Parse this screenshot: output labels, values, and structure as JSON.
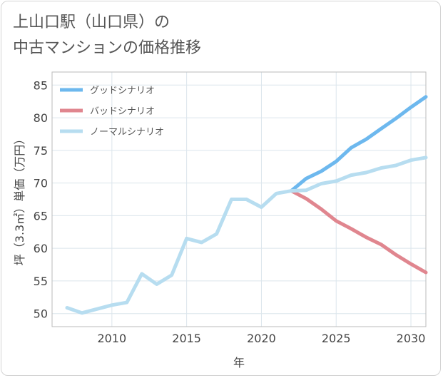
{
  "title_lines": [
    "上山口駅（山口県）の",
    "中古マンションの価格推移"
  ],
  "chart_data": {
    "type": "line",
    "xlabel": "年",
    "ylabel": "坪（3.3㎡）単価（万円）",
    "xlim": [
      2006,
      2031
    ],
    "ylim": [
      48,
      87
    ],
    "x_ticks": [
      2010,
      2015,
      2020,
      2025,
      2030
    ],
    "y_ticks": [
      50,
      55,
      60,
      65,
      70,
      75,
      80,
      85
    ],
    "grid": true,
    "legend_position": "top-left",
    "series": [
      {
        "name": "グッドシナリオ",
        "color": "#6db8ee",
        "points": [
          [
            2022,
            68.8
          ],
          [
            2023,
            70.7
          ],
          [
            2024,
            71.8
          ],
          [
            2025,
            73.3
          ],
          [
            2026,
            75.4
          ],
          [
            2027,
            76.7
          ],
          [
            2028,
            78.3
          ],
          [
            2029,
            79.9
          ],
          [
            2030,
            81.6
          ],
          [
            2031,
            83.2
          ]
        ]
      },
      {
        "name": "バッドシナリオ",
        "color": "#e0868f",
        "points": [
          [
            2022,
            68.8
          ],
          [
            2023,
            67.6
          ],
          [
            2024,
            66.0
          ],
          [
            2025,
            64.2
          ],
          [
            2026,
            63.0
          ],
          [
            2027,
            61.7
          ],
          [
            2028,
            60.6
          ],
          [
            2029,
            59.0
          ],
          [
            2030,
            57.6
          ],
          [
            2031,
            56.3
          ]
        ]
      },
      {
        "name": "ノーマルシナリオ",
        "color": "#b7ddf0",
        "points": [
          [
            2007,
            50.9
          ],
          [
            2008,
            50.1
          ],
          [
            2009,
            50.7
          ],
          [
            2010,
            51.3
          ],
          [
            2011,
            51.7
          ],
          [
            2012,
            56.1
          ],
          [
            2013,
            54.5
          ],
          [
            2014,
            55.9
          ],
          [
            2015,
            61.5
          ],
          [
            2016,
            60.9
          ],
          [
            2017,
            62.2
          ],
          [
            2018,
            67.5
          ],
          [
            2019,
            67.5
          ],
          [
            2020,
            66.3
          ],
          [
            2021,
            68.4
          ],
          [
            2022,
            68.8
          ],
          [
            2023,
            68.9
          ],
          [
            2024,
            69.9
          ],
          [
            2025,
            70.3
          ],
          [
            2026,
            71.2
          ],
          [
            2027,
            71.6
          ],
          [
            2028,
            72.3
          ],
          [
            2029,
            72.7
          ],
          [
            2030,
            73.5
          ],
          [
            2031,
            73.9
          ]
        ]
      }
    ]
  }
}
